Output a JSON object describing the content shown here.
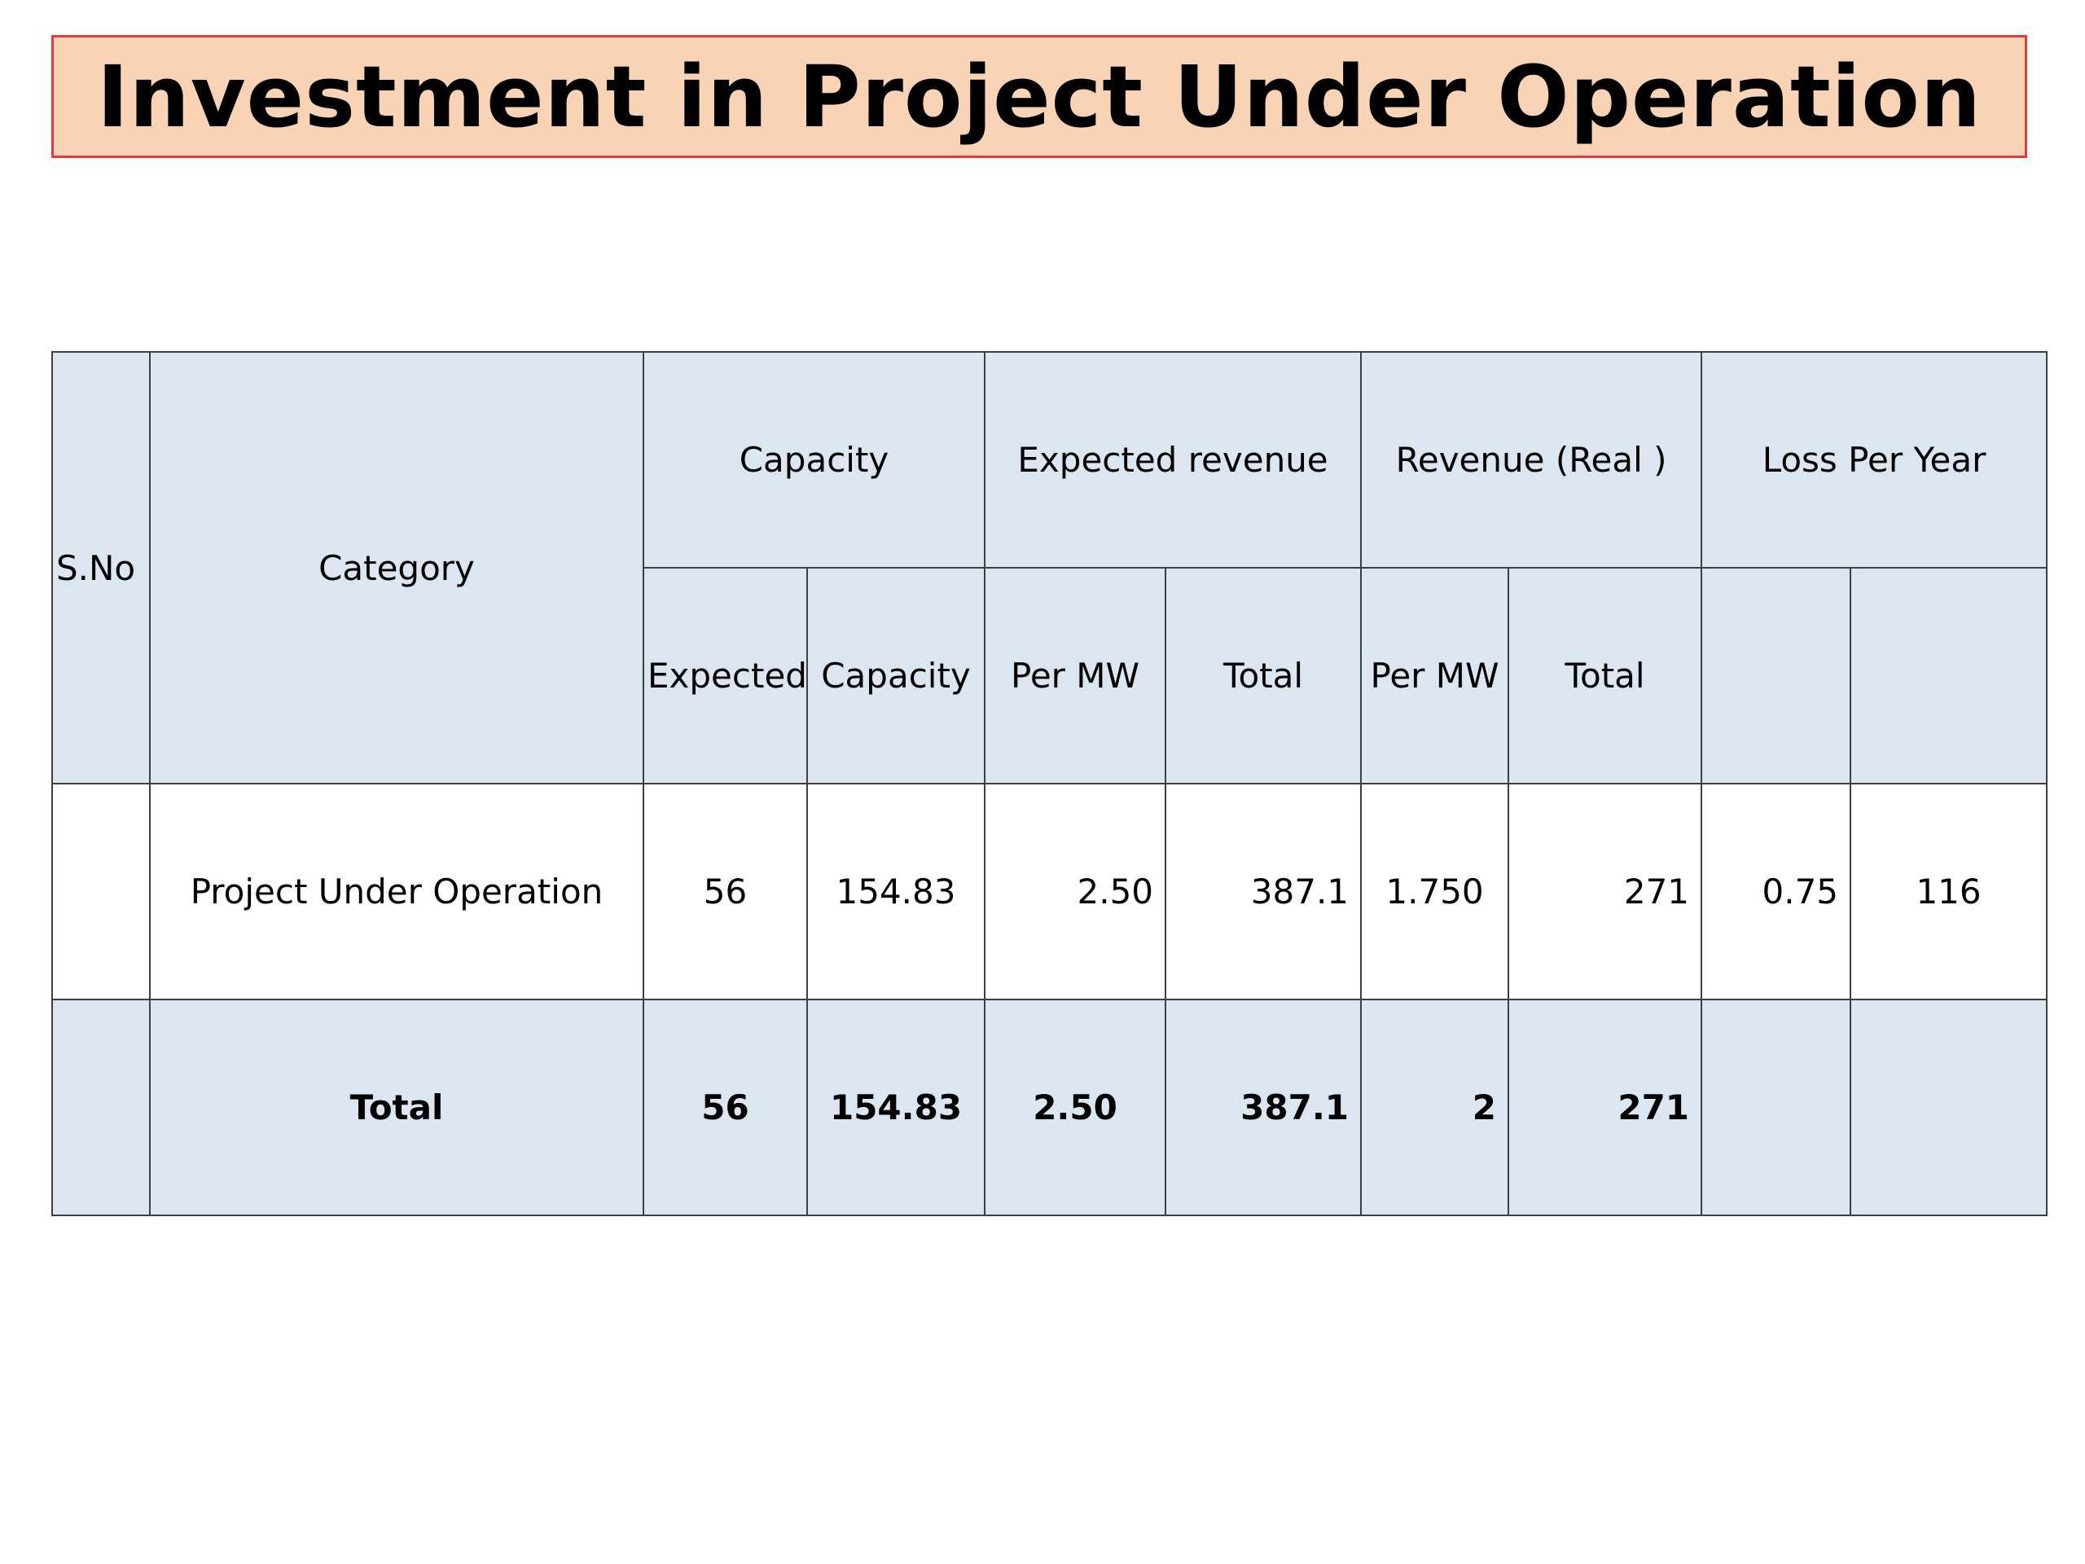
{
  "title": "Investment in Project Under Operation",
  "colors": {
    "title_bg": "#f9d3b5",
    "title_border": "#e83a3a",
    "header_bg": "#dce6f1",
    "grid_line": "#3f3f3f"
  },
  "table": {
    "header_top": {
      "sno": "S.No",
      "category": "Category",
      "capacity": "Capacity",
      "expected_revenue": "Expected revenue",
      "revenue_real": "Revenue (Real )",
      "loss_per_year": "Loss Per Year"
    },
    "header_sub": {
      "expected": "Expected",
      "capacity": "Capacity",
      "exp_per_mw": "Per MW",
      "exp_total": "Total",
      "real_per_mw": "Per MW",
      "real_total": "Total",
      "loss_a": "",
      "loss_b": ""
    },
    "rows": [
      {
        "sno": "",
        "category": "Project Under Operation",
        "expected": "56",
        "capacity": "154.83",
        "exp_per_mw": "2.50",
        "exp_total": "387.1",
        "real_per_mw": "1.750",
        "real_total": "271",
        "loss_a": "0.75",
        "loss_b": "116"
      }
    ],
    "total": {
      "sno": "",
      "category": "Total",
      "expected": "56",
      "capacity": "154.83",
      "exp_per_mw": "2.50",
      "exp_total": "387.1",
      "real_per_mw": "2",
      "real_total": "271",
      "loss_a": "",
      "loss_b": ""
    }
  }
}
